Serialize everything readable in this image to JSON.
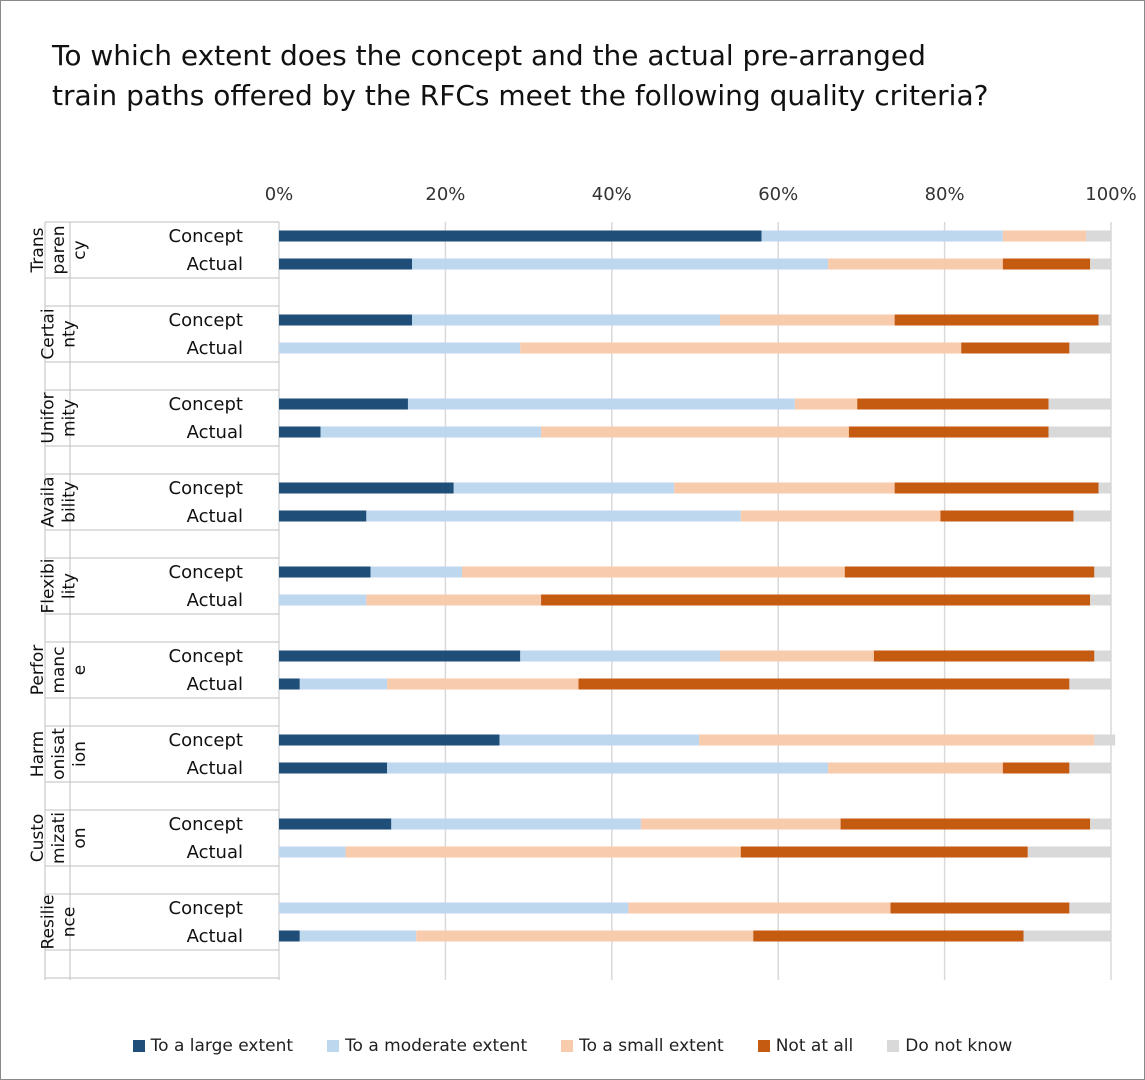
{
  "chart_data": {
    "type": "bar",
    "orientation": "horizontal",
    "stacked": true,
    "title_lines": [
      "To which extent does the concept and the actual pre-arranged",
      "train paths offered by the RFCs meet the following quality criteria?"
    ],
    "xlim": [
      0,
      100
    ],
    "x_ticks": [
      "0%",
      "20%",
      "40%",
      "60%",
      "80%",
      "100%"
    ],
    "grid": true,
    "legend_position": "bottom",
    "series_names": [
      "To a large extent",
      "To a moderate extent",
      "To a small extent",
      "Not at all",
      "Do not know"
    ],
    "colors": [
      "#1f4e79",
      "#bdd7ee",
      "#f8cbad",
      "#c55a11",
      "#d9d9d9"
    ],
    "groups": [
      {
        "lines": [
          "Trans",
          "paren",
          "cy"
        ],
        "rows": [
          {
            "label": "Concept",
            "values": [
              58,
              29,
              10,
              0,
              3
            ]
          },
          {
            "label": "Actual",
            "values": [
              16,
              50,
              21,
              10.5,
              2.5
            ]
          }
        ]
      },
      {
        "lines": [
          "Certai",
          "nty"
        ],
        "rows": [
          {
            "label": "Concept",
            "values": [
              16,
              37,
              21,
              24.5,
              1.5
            ]
          },
          {
            "label": "Actual",
            "values": [
              0,
              29,
              53,
              13,
              5
            ]
          }
        ]
      },
      {
        "lines": [
          "Unifor",
          "mity"
        ],
        "rows": [
          {
            "label": "Concept",
            "values": [
              15.5,
              46.5,
              7.5,
              23,
              7.5
            ]
          },
          {
            "label": "Actual",
            "values": [
              5,
              26.5,
              37,
              24,
              7.5
            ]
          }
        ]
      },
      {
        "lines": [
          "Availa",
          "bility"
        ],
        "rows": [
          {
            "label": "Concept",
            "values": [
              21,
              26.5,
              26.5,
              24.5,
              1.5
            ]
          },
          {
            "label": "Actual",
            "values": [
              10.5,
              45,
              24,
              16,
              4.5
            ]
          }
        ]
      },
      {
        "lines": [
          "Flexibi",
          "lity"
        ],
        "rows": [
          {
            "label": "Concept",
            "values": [
              11,
              11,
              46,
              30,
              2
            ]
          },
          {
            "label": "Actual",
            "values": [
              0,
              10.5,
              21,
              66,
              2.5
            ]
          }
        ]
      },
      {
        "lines": [
          "Perfor",
          "manc",
          "e"
        ],
        "rows": [
          {
            "label": "Concept",
            "values": [
              29,
              24,
              18.5,
              26.5,
              2
            ]
          },
          {
            "label": "Actual",
            "values": [
              2.5,
              10.5,
              23,
              59,
              5
            ]
          }
        ]
      },
      {
        "lines": [
          "Harm",
          "onisat",
          "ion"
        ],
        "rows": [
          {
            "label": "Concept",
            "values": [
              26.5,
              24,
              47.5,
              0,
              2.5
            ]
          },
          {
            "label": "Actual",
            "values": [
              13,
              53,
              21,
              8,
              5
            ]
          }
        ]
      },
      {
        "lines": [
          "Custo",
          "mizati",
          "on"
        ],
        "rows": [
          {
            "label": "Concept",
            "values": [
              13.5,
              30,
              24,
              30,
              2.5
            ]
          },
          {
            "label": "Actual",
            "values": [
              0,
              8,
              47.5,
              34.5,
              10
            ]
          }
        ]
      },
      {
        "lines": [
          "Resilie",
          "nce"
        ],
        "rows": [
          {
            "label": "Concept",
            "values": [
              0,
              42,
              31.5,
              21.5,
              5
            ]
          },
          {
            "label": "Actual",
            "values": [
              2.5,
              14,
              40.5,
              32.5,
              10.5
            ]
          }
        ]
      }
    ]
  }
}
